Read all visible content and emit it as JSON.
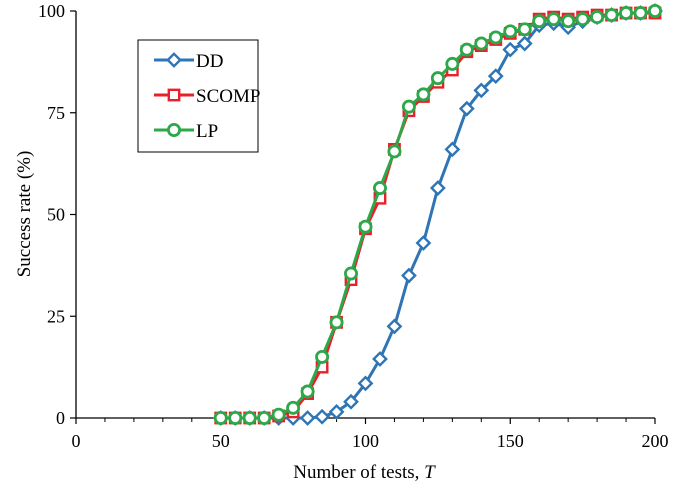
{
  "chart_data": {
    "type": "line",
    "xlabel_prefix": "Number of tests, ",
    "xlabel_var": "T",
    "ylabel": "Success rate (%)",
    "xlim": [
      0,
      200
    ],
    "ylim": [
      0,
      100
    ],
    "xticks": [
      0,
      50,
      100,
      150,
      200
    ],
    "yticks": [
      0,
      25,
      50,
      75,
      100
    ],
    "xticks_minor": [
      10,
      20,
      30,
      40,
      60,
      70,
      80,
      90,
      110,
      120,
      130,
      140,
      160,
      170,
      180,
      190
    ],
    "grid": false,
    "legend": "top-left",
    "series": [
      {
        "name": "DD",
        "color": "#2E75B6",
        "marker": "diamond",
        "x": [
          50,
          55,
          60,
          65,
          70,
          75,
          80,
          85,
          90,
          95,
          100,
          105,
          110,
          115,
          120,
          125,
          130,
          135,
          140,
          145,
          150,
          155,
          160,
          165,
          170,
          175,
          180,
          185,
          190,
          195,
          200
        ],
        "values": [
          0,
          0,
          0,
          0,
          0,
          0,
          0,
          0.3,
          1.5,
          4,
          8.5,
          14.5,
          22.5,
          35,
          43,
          56.5,
          66,
          76,
          80.5,
          84,
          90.5,
          92,
          96.5,
          97,
          96,
          97.5,
          98.5,
          99,
          99.5,
          99.5,
          100
        ]
      },
      {
        "name": "SCOMP",
        "color": "#E8202A",
        "marker": "square",
        "x": [
          50,
          55,
          60,
          65,
          70,
          75,
          80,
          85,
          90,
          95,
          100,
          105,
          110,
          115,
          120,
          125,
          130,
          135,
          140,
          145,
          150,
          155,
          160,
          165,
          170,
          175,
          180,
          185,
          190,
          195,
          200
        ],
        "values": [
          0,
          0,
          0,
          0,
          0.5,
          1.5,
          6,
          12.5,
          23.5,
          34,
          46.5,
          54,
          66,
          75.5,
          79,
          82.5,
          85.5,
          90,
          91.5,
          93,
          94.5,
          95.5,
          98,
          98.5,
          98,
          98.5,
          99,
          99,
          99.5,
          99.5,
          99.5
        ]
      },
      {
        "name": "LP",
        "color": "#2CA849",
        "marker": "circle",
        "x": [
          50,
          55,
          60,
          65,
          70,
          75,
          80,
          85,
          90,
          95,
          100,
          105,
          110,
          115,
          120,
          125,
          130,
          135,
          140,
          145,
          150,
          155,
          160,
          165,
          170,
          175,
          180,
          185,
          190,
          195,
          200
        ],
        "values": [
          0,
          0,
          0,
          0,
          0.8,
          2.5,
          6.5,
          15,
          23.5,
          35.5,
          47,
          56.5,
          65.5,
          76.5,
          79.5,
          83.5,
          87,
          90.5,
          92,
          93.5,
          95,
          95.5,
          97.5,
          98,
          97.5,
          98,
          98.5,
          99,
          99.5,
          99.5,
          100
        ]
      }
    ]
  }
}
